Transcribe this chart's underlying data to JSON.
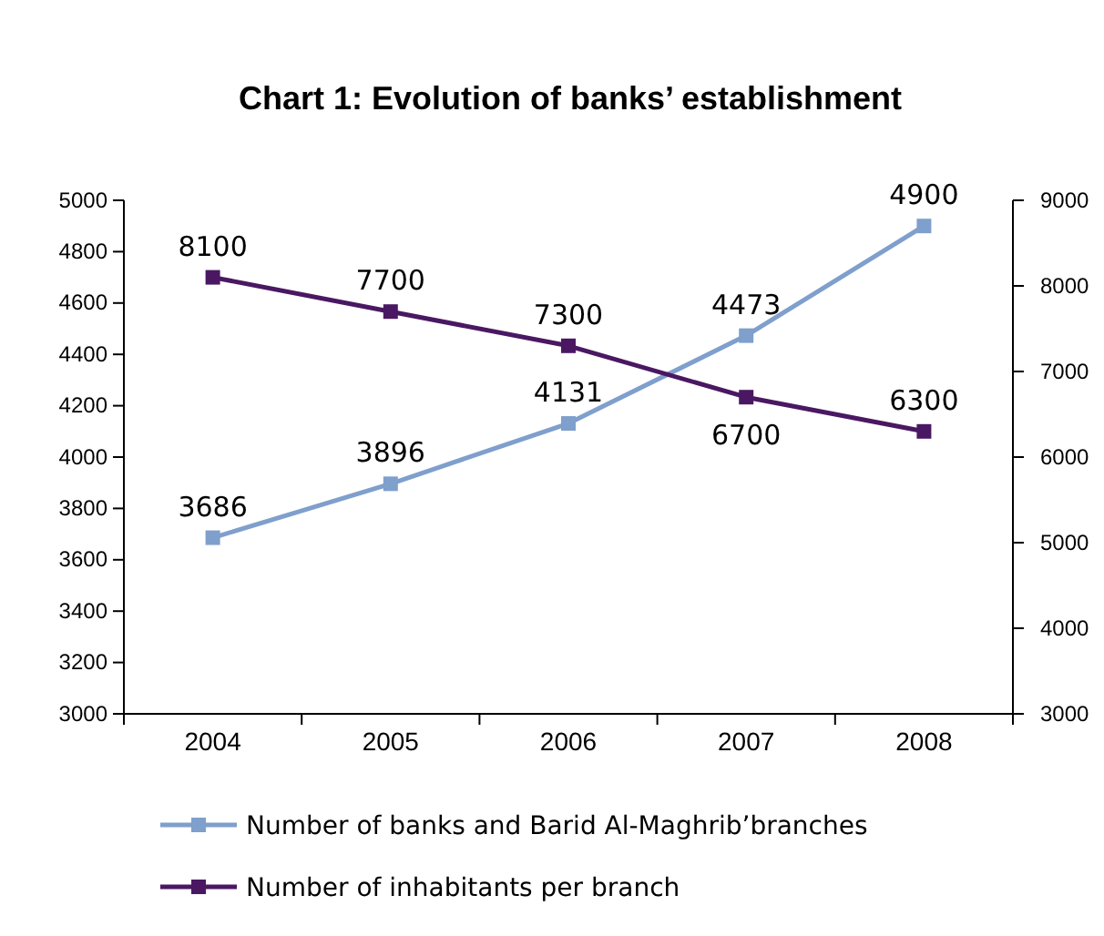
{
  "chart_data": {
    "type": "line",
    "title": "Chart 1: Evolution of banks’ establishment",
    "categories": [
      "2004",
      "2005",
      "2006",
      "2007",
      "2008"
    ],
    "series": [
      {
        "name": "Number of banks and Barid Al-Maghrib’branches",
        "color": "#7f9fcc",
        "values": [
          3686,
          3896,
          4131,
          4473,
          4900
        ]
      },
      {
        "name": "Number of inhabitants per branch",
        "color": "#4a1862",
        "values": [
          8100,
          7700,
          7300,
          6700,
          6300
        ],
        "axis": "y2"
      }
    ],
    "ylim": [
      3000,
      5000
    ],
    "yticks": [
      3000,
      3200,
      3400,
      3600,
      3800,
      4000,
      4200,
      4400,
      4600,
      4800,
      5000
    ],
    "y2lim": [
      3000,
      9000
    ],
    "y2ticks": [
      3000,
      4000,
      5000,
      6000,
      7000,
      8000,
      9000
    ],
    "marker": "square",
    "line_style": "solid",
    "data_labels": true,
    "legend": "bottom",
    "grid": false
  }
}
